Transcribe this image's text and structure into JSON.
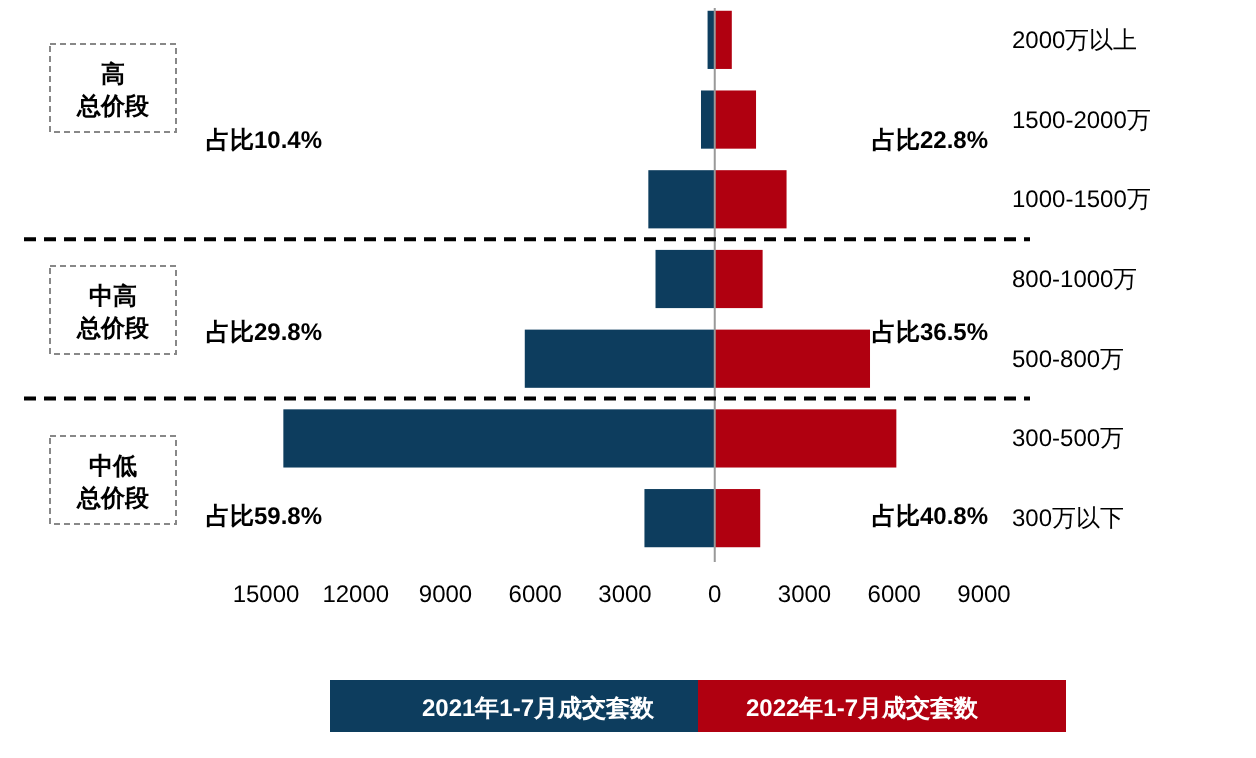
{
  "chart_data": {
    "type": "bar",
    "orientation": "horizontal",
    "categories": [
      "2000万以上",
      "1500-2000万",
      "1000-1500万",
      "800-1000万",
      "500-800万",
      "300-500万",
      "300万以下"
    ],
    "series": [
      {
        "name": "2021年1-7月成交套数",
        "color": "#0d3d5e",
        "values": [
          -240,
          -460,
          -2220,
          -1980,
          -6350,
          -14420,
          -2350
        ]
      },
      {
        "name": "2022年1-7月成交套数",
        "color": "#b00010",
        "values": [
          570,
          1380,
          2400,
          1600,
          5190,
          6070,
          1520
        ]
      }
    ],
    "xlim": [
      -15000,
      9000
    ],
    "xticks": [
      {
        "value": -15000,
        "label": "15000"
      },
      {
        "value": -12000,
        "label": "12000"
      },
      {
        "value": -9000,
        "label": "9000"
      },
      {
        "value": -6000,
        "label": "6000"
      },
      {
        "value": -3000,
        "label": "3000"
      },
      0,
      3000,
      6000,
      9000
    ],
    "stacked": true,
    "annotations": [
      "高总价段",
      "占比10.4%",
      "占比22.8%",
      "中高总价段",
      "占比29.8%",
      "占比36.5%",
      "中低总价段",
      "占比59.8%",
      "占比40.8%"
    ],
    "legend": "bottom",
    "grid": false
  }
}
